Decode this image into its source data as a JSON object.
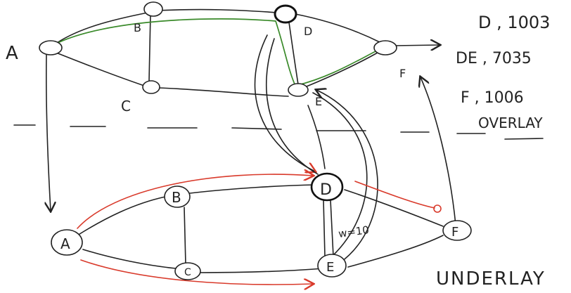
{
  "colors": {
    "ink": "#222222",
    "green_path": "#3a8a2a",
    "red_path": "#d93a2b",
    "background": "#ffffff"
  },
  "overlay": {
    "labels": {
      "A": "A",
      "B": "B",
      "C": "C",
      "D": "D",
      "E": "E",
      "F": "F"
    },
    "notes": [
      "D , 1003",
      "DE , 7035",
      "F , 1006"
    ],
    "title": "OVERLAY"
  },
  "underlay": {
    "labels": {
      "A": "A",
      "B": "B",
      "C": "C",
      "D": "D",
      "E": "E",
      "F": "F"
    },
    "edge_weight": "w=10",
    "title": "UNDERLAY"
  }
}
